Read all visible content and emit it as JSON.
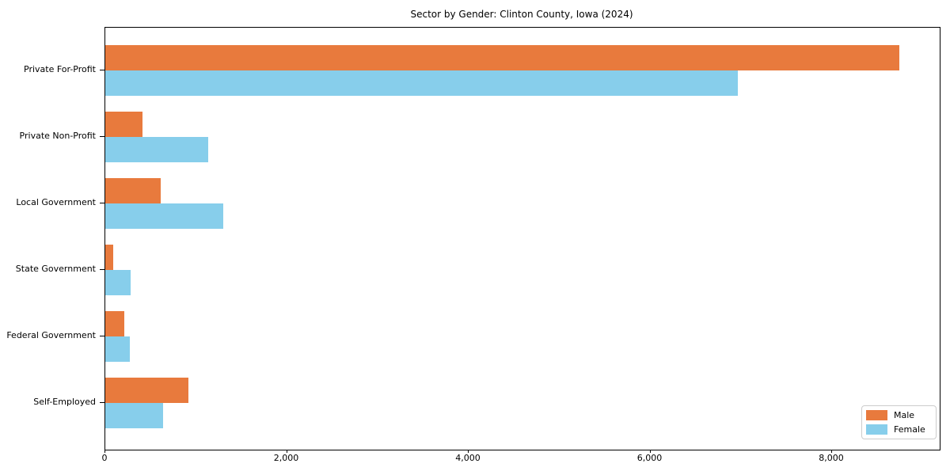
{
  "title": "Sector by Gender: Clinton County, Iowa (2024)",
  "chart_data": {
    "type": "bar",
    "orientation": "horizontal",
    "title": "Sector by Gender: Clinton County, Iowa (2024)",
    "categories": [
      "Private For-Profit",
      "Private Non-Profit",
      "Local Government",
      "State Government",
      "Federal Government",
      "Self-Employed"
    ],
    "series": [
      {
        "name": "Male",
        "color": "#e87a3d",
        "values": [
          8740,
          410,
          610,
          90,
          210,
          915
        ]
      },
      {
        "name": "Female",
        "color": "#87ceeb",
        "values": [
          6960,
          1130,
          1300,
          280,
          270,
          640
        ]
      }
    ],
    "xlabel": "",
    "ylabel": "",
    "xlim": [
      0,
      9185
    ],
    "x_ticks": [
      0,
      2000,
      4000,
      6000,
      8000
    ],
    "x_tick_labels": [
      "0",
      "2,000",
      "4,000",
      "6,000",
      "8,000"
    ],
    "grid": false,
    "legend_position": "lower right"
  },
  "legend": {
    "items": [
      {
        "label": "Male",
        "color": "#e87a3d"
      },
      {
        "label": "Female",
        "color": "#87ceeb"
      }
    ]
  }
}
